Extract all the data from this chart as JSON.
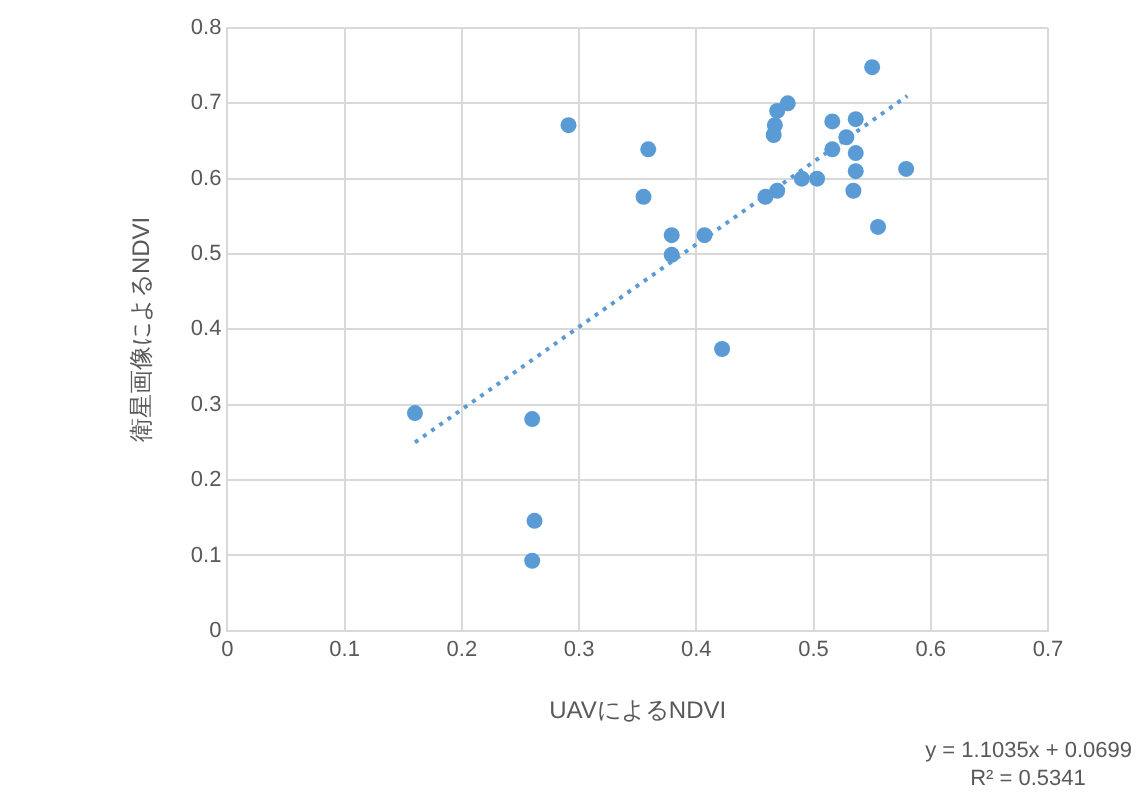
{
  "chart_data": {
    "type": "scatter",
    "xlabel": "UAVによるNDVI",
    "ylabel": "衛星画像によるNDVI",
    "xlim": [
      0,
      0.7
    ],
    "xticks": [
      0,
      0.1,
      0.2,
      0.3,
      0.4,
      0.5,
      0.6,
      0.7
    ],
    "ylim": [
      0,
      0.8
    ],
    "yticks": [
      0,
      0.1,
      0.2,
      0.3,
      0.4,
      0.5,
      0.6,
      0.7,
      0.8
    ],
    "grid": true,
    "legend": false,
    "marker": "circle",
    "series": [
      {
        "color": "#5b9bd5",
        "x": [
          0.16,
          0.26,
          0.262,
          0.26,
          0.291,
          0.355,
          0.359,
          0.379,
          0.379,
          0.407,
          0.422,
          0.459,
          0.469,
          0.466,
          0.467,
          0.469,
          0.478,
          0.49,
          0.503,
          0.516,
          0.516,
          0.528,
          0.536,
          0.534,
          0.536,
          0.536,
          0.55,
          0.555,
          0.579
        ],
        "values": [
          0.289,
          0.281,
          0.146,
          0.093,
          0.671,
          0.576,
          0.639,
          0.525,
          0.499,
          0.525,
          0.374,
          0.576,
          0.584,
          0.658,
          0.671,
          0.69,
          0.7,
          0.6,
          0.6,
          0.676,
          0.639,
          0.655,
          0.61,
          0.584,
          0.679,
          0.634,
          0.748,
          0.536,
          0.613
        ]
      },
      {
        "type": "line",
        "color": "#5b9bd5",
        "line_style": "dotted",
        "marker": "none",
        "x": [
          0.16,
          0.58
        ],
        "values": [
          0.25,
          0.71
        ]
      }
    ],
    "annotations": [
      "y = 1.1035x + 0.0699",
      "R² = 0.5341"
    ]
  }
}
